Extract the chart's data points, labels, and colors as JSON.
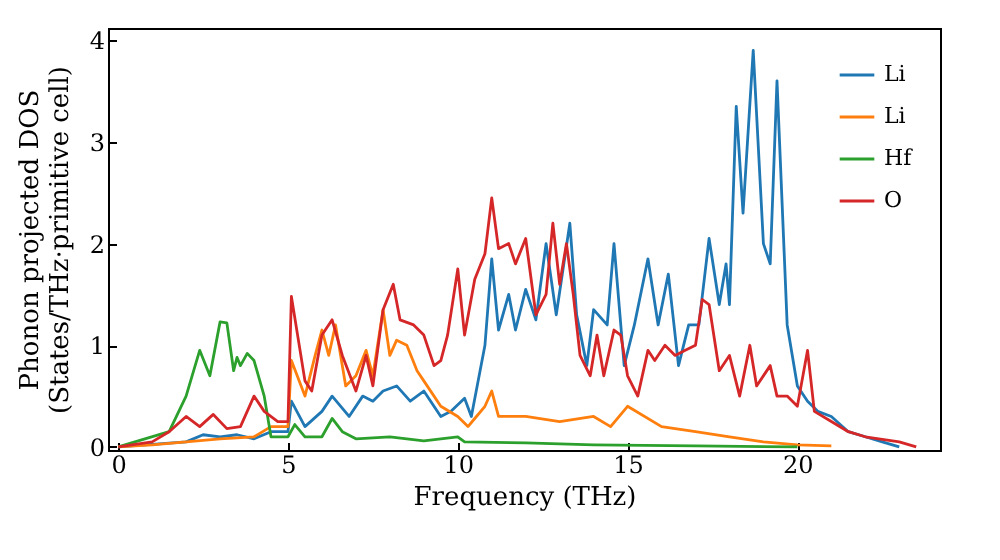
{
  "chart_data": {
    "type": "line",
    "xlabel": "Frequency (THz)",
    "ylabel": [
      "Phonon projected DOS",
      "(States/THz·primitive cell)"
    ],
    "xlim": [
      -0.3,
      24.2
    ],
    "ylim": [
      -0.03,
      4.12
    ],
    "xticks": [
      0,
      5,
      10,
      15,
      20
    ],
    "yticks": [
      0,
      1,
      2,
      3,
      4
    ],
    "grid": false,
    "legend": "top right",
    "marker": "none",
    "line_style": "solid",
    "series": [
      {
        "name": "Li",
        "color": "#1f77b4",
        "x": [
          0,
          2,
          2.5,
          3,
          3.5,
          4,
          4.5,
          5,
          5.1,
          5.5,
          6,
          6.3,
          6.8,
          7.2,
          7.5,
          7.8,
          8.2,
          8.6,
          9,
          9.5,
          9.8,
          10.2,
          10.4,
          10.8,
          11,
          11.2,
          11.5,
          11.7,
          12,
          12.3,
          12.6,
          12.9,
          13.3,
          13.5,
          13.8,
          14,
          14.4,
          14.6,
          14.9,
          15.2,
          15.6,
          15.9,
          16.2,
          16.5,
          16.8,
          17.1,
          17.4,
          17.7,
          17.9,
          18,
          18.2,
          18.4,
          18.7,
          19,
          19.2,
          19.4,
          19.7,
          20,
          20.3,
          20.6,
          21,
          21.5,
          22,
          22.5,
          23
        ],
        "values": [
          0,
          0.05,
          0.12,
          0.1,
          0.12,
          0.08,
          0.15,
          0.15,
          0.45,
          0.2,
          0.35,
          0.5,
          0.3,
          0.5,
          0.45,
          0.55,
          0.6,
          0.45,
          0.55,
          0.3,
          0.35,
          0.48,
          0.3,
          1.0,
          1.85,
          1.15,
          1.5,
          1.15,
          1.55,
          1.25,
          2.0,
          1.3,
          2.2,
          1.3,
          0.8,
          1.35,
          1.2,
          2.0,
          0.8,
          1.2,
          1.85,
          1.2,
          1.7,
          0.8,
          1.2,
          1.2,
          2.05,
          1.4,
          1.8,
          1.4,
          3.35,
          2.3,
          3.9,
          2.0,
          1.8,
          3.6,
          1.2,
          0.6,
          0.45,
          0.35,
          0.3,
          0.15,
          0.1,
          0.05,
          0
        ]
      },
      {
        "name": "Li",
        "color": "#ff7f0e",
        "x": [
          0,
          1,
          2,
          3,
          4,
          4.5,
          5,
          5.1,
          5.5,
          5.8,
          6,
          6.2,
          6.4,
          6.7,
          7,
          7.3,
          7.5,
          7.8,
          8,
          8.2,
          8.5,
          8.8,
          9,
          9.5,
          10,
          10.3,
          10.5,
          10.8,
          11,
          11.2,
          12,
          13,
          14,
          14.5,
          15,
          16,
          17,
          18,
          19,
          20,
          21
        ],
        "values": [
          0,
          0.02,
          0.05,
          0.08,
          0.1,
          0.2,
          0.2,
          0.85,
          0.5,
          0.9,
          1.15,
          0.9,
          1.2,
          0.6,
          0.7,
          0.95,
          0.7,
          1.35,
          0.9,
          1.05,
          1.0,
          0.75,
          0.65,
          0.4,
          0.3,
          0.2,
          0.28,
          0.4,
          0.55,
          0.3,
          0.3,
          0.25,
          0.3,
          0.2,
          0.4,
          0.2,
          0.15,
          0.1,
          0.05,
          0.02,
          0.01
        ]
      },
      {
        "name": "Hf",
        "color": "#2ca02c",
        "x": [
          0,
          1.5,
          2,
          2.4,
          2.7,
          3,
          3.2,
          3.4,
          3.5,
          3.6,
          3.8,
          4,
          4.3,
          4.5,
          5,
          5.2,
          5.5,
          6,
          6.3,
          6.6,
          7,
          8,
          9,
          10,
          10.2,
          12,
          14,
          17,
          20
        ],
        "values": [
          0,
          0.15,
          0.5,
          0.95,
          0.7,
          1.23,
          1.22,
          0.75,
          0.88,
          0.8,
          0.92,
          0.85,
          0.5,
          0.1,
          0.1,
          0.22,
          0.1,
          0.1,
          0.28,
          0.15,
          0.08,
          0.1,
          0.06,
          0.1,
          0.05,
          0.04,
          0.02,
          0.01,
          0
        ]
      },
      {
        "name": "O",
        "color": "#d62728",
        "x": [
          0,
          1,
          1.5,
          2,
          2.4,
          2.8,
          3.2,
          3.6,
          4,
          4.3,
          4.7,
          5,
          5.1,
          5.5,
          5.7,
          6,
          6.3,
          6.6,
          7,
          7.3,
          7.5,
          7.8,
          8.1,
          8.3,
          8.7,
          9,
          9.3,
          9.5,
          9.7,
          10,
          10.2,
          10.5,
          10.8,
          11,
          11.2,
          11.5,
          11.7,
          12,
          12.3,
          12.6,
          12.8,
          13,
          13.2,
          13.4,
          13.6,
          13.9,
          14.1,
          14.3,
          14.6,
          14.8,
          15,
          15.3,
          15.6,
          15.8,
          16.1,
          16.4,
          16.7,
          17,
          17.2,
          17.4,
          17.7,
          18,
          18.3,
          18.6,
          18.8,
          19.2,
          19.4,
          19.7,
          20,
          20.3,
          20.5,
          21,
          21.5,
          22,
          23,
          23.5
        ],
        "values": [
          0,
          0.05,
          0.15,
          0.3,
          0.2,
          0.32,
          0.18,
          0.2,
          0.5,
          0.35,
          0.25,
          0.25,
          1.48,
          0.65,
          0.55,
          1.1,
          1.25,
          0.9,
          0.55,
          0.9,
          0.6,
          1.35,
          1.6,
          1.25,
          1.2,
          1.1,
          0.8,
          0.85,
          1.1,
          1.75,
          1.1,
          1.65,
          1.9,
          2.45,
          1.95,
          2.0,
          1.8,
          2.05,
          1.3,
          1.5,
          2.2,
          1.6,
          2.0,
          1.5,
          0.9,
          0.7,
          1.1,
          0.7,
          1.15,
          1.1,
          0.7,
          0.5,
          0.95,
          0.85,
          1.0,
          0.9,
          0.95,
          1.0,
          1.45,
          1.4,
          0.75,
          0.9,
          0.5,
          1.0,
          0.6,
          0.8,
          0.5,
          0.5,
          0.4,
          0.95,
          0.35,
          0.25,
          0.15,
          0.1,
          0.05,
          0
        ]
      }
    ]
  }
}
